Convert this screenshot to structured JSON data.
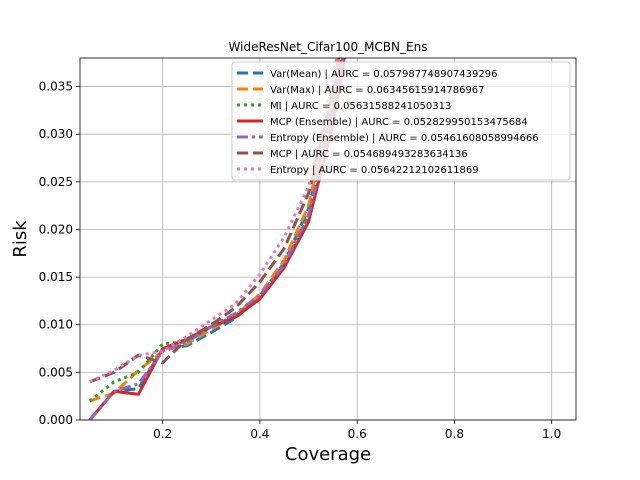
{
  "chart_data": {
    "type": "line",
    "title": "WideResNet_Cifar100_MCBN_Ens",
    "xlabel": "Coverage",
    "ylabel": "Risk",
    "xlim": [
      0.03,
      1.05
    ],
    "ylim": [
      0.0,
      0.038
    ],
    "xticks": [
      0.2,
      0.4,
      0.6,
      0.8,
      1.0
    ],
    "xtick_labels": [
      "0.2",
      "0.4",
      "0.6",
      "0.8",
      "1.0"
    ],
    "yticks": [
      0.0,
      0.005,
      0.01,
      0.015,
      0.02,
      0.025,
      0.03,
      0.035
    ],
    "ytick_labels": [
      "0.000",
      "0.005",
      "0.010",
      "0.015",
      "0.020",
      "0.025",
      "0.030",
      "0.035"
    ],
    "grid": true,
    "legend_position": "upper-right",
    "series": [
      {
        "name": "Var(Mean) | AURC = 0.057987748907439296",
        "color": "#1f77b4",
        "dash": "dashed",
        "x": [
          0.05,
          0.1,
          0.15,
          0.2,
          0.25,
          0.3,
          0.35,
          0.4,
          0.45,
          0.5,
          0.55,
          0.6
        ],
        "y": [
          0.0,
          0.003,
          0.0033,
          0.0075,
          0.0078,
          0.0092,
          0.0107,
          0.013,
          0.0165,
          0.0222,
          0.033,
          0.048
        ]
      },
      {
        "name": "Var(Max) | AURC = 0.06345615914786967",
        "color": "#ff7f0e",
        "dash": "dashed",
        "x": [
          0.05,
          0.1,
          0.15,
          0.2,
          0.25,
          0.3,
          0.35,
          0.4,
          0.45,
          0.5,
          0.55,
          0.6
        ],
        "y": [
          0.002,
          0.0028,
          0.0052,
          0.0072,
          0.008,
          0.0095,
          0.011,
          0.0132,
          0.0168,
          0.0225,
          0.034,
          0.05
        ]
      },
      {
        "name": "MI | AURC = 0.05631588241050313",
        "color": "#2ca02c",
        "dash": "dotted",
        "x": [
          0.05,
          0.1,
          0.15,
          0.2,
          0.25,
          0.3,
          0.35,
          0.4,
          0.45,
          0.5,
          0.55,
          0.6
        ],
        "y": [
          0.002,
          0.004,
          0.005,
          0.008,
          0.0082,
          0.0098,
          0.011,
          0.0128,
          0.016,
          0.0215,
          0.032,
          0.047
        ]
      },
      {
        "name": "MCP (Ensemble) | AURC = 0.052829950153475684",
        "color": "#d62728",
        "dash": "solid",
        "x": [
          0.05,
          0.1,
          0.15,
          0.2,
          0.25,
          0.3,
          0.35,
          0.4,
          0.45,
          0.5,
          0.55,
          0.6
        ],
        "y": [
          0.0,
          0.003,
          0.0027,
          0.0075,
          0.0085,
          0.0098,
          0.0108,
          0.0127,
          0.016,
          0.0208,
          0.031,
          0.046
        ]
      },
      {
        "name": "Entropy (Ensemble) | AURC = 0.05461608058994666",
        "color": "#9467bd",
        "dash": "dashdot",
        "x": [
          0.05,
          0.1,
          0.15,
          0.2,
          0.25,
          0.3,
          0.35,
          0.4,
          0.45,
          0.5,
          0.55,
          0.6
        ],
        "y": [
          0.0,
          0.003,
          0.0038,
          0.0072,
          0.0082,
          0.0098,
          0.0112,
          0.0131,
          0.0163,
          0.0215,
          0.032,
          0.047
        ]
      },
      {
        "name": "MCP | AURC = 0.054689493283634136",
        "color": "#8c564b",
        "dash": "dashed",
        "x": [
          0.05,
          0.1,
          0.15,
          0.2,
          0.25,
          0.3,
          0.35,
          0.4,
          0.45,
          0.5,
          0.55,
          0.6
        ],
        "y": [
          0.004,
          0.005,
          0.0068,
          0.006,
          0.0085,
          0.01,
          0.0118,
          0.0145,
          0.018,
          0.0238,
          0.0345,
          0.05
        ]
      },
      {
        "name": "Entropy | AURC = 0.05642212102611869",
        "color": "#e377c2",
        "dash": "dotted",
        "x": [
          0.05,
          0.1,
          0.15,
          0.2,
          0.25,
          0.3,
          0.35,
          0.4,
          0.45,
          0.5,
          0.55,
          0.6
        ],
        "y": [
          0.004,
          0.0052,
          0.0068,
          0.0072,
          0.0088,
          0.0105,
          0.0122,
          0.0153,
          0.0192,
          0.0245,
          0.0355,
          0.052
        ]
      }
    ]
  }
}
